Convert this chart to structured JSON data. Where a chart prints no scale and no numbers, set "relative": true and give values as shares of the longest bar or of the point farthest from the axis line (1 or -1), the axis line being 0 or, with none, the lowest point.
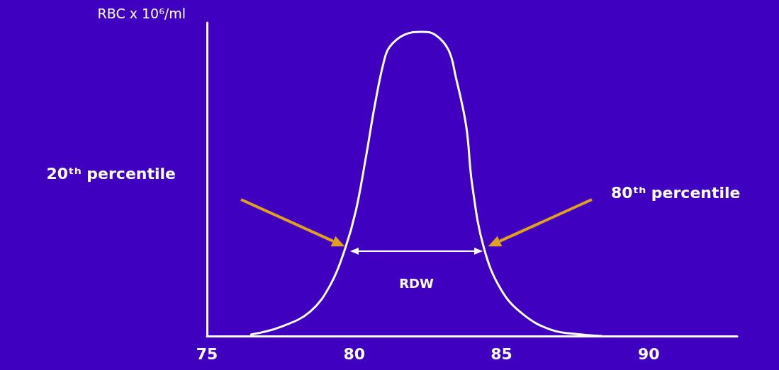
{
  "chart_data": {
    "type": "line",
    "relative": true,
    "ylabel": "RBC x 10⁶/ml",
    "x": [
      76.5,
      77.5,
      78.5,
      79.2,
      79.7,
      80.05,
      80.4,
      80.7,
      81.0,
      81.2,
      81.7,
      82.3,
      82.75,
      83.2,
      83.45,
      83.8,
      84.0,
      84.4,
      85.0,
      85.75,
      86.7,
      87.7,
      88.4
    ],
    "series": [
      {
        "color": "#ffffff",
        "values": [
          0.005,
          0.03,
          0.08,
          0.17,
          0.29,
          0.41,
          0.59,
          0.76,
          0.9,
          0.95,
          0.99,
          1,
          0.99,
          0.94,
          0.85,
          0.69,
          0.5,
          0.29,
          0.15,
          0.07,
          0.02,
          0.005,
          0
        ]
      }
    ],
    "xlim": [
      75,
      93
    ],
    "xticks": [
      75,
      80,
      85,
      90
    ],
    "marker": "none",
    "line_style": "solid",
    "annotations": [
      "20ᵗʰ percentile",
      "80ᵗʰ percentile",
      "RDW"
    ]
  }
}
